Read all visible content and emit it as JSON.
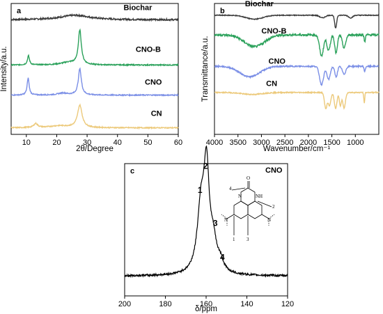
{
  "colors": {
    "Biochar": "#3a3a3a",
    "CNO-B": "#2aa15a",
    "CNO": "#7a8ee6",
    "CN": "#ecc97a",
    "ink": "#000000"
  },
  "chart_data": [
    {
      "id": "a",
      "type": "line",
      "panel_label": "a",
      "xlabel": "2θ/Degree",
      "ylabel": "Intensity/a.u.",
      "xlim": [
        5,
        60
      ],
      "ylim": [
        0,
        1
      ],
      "xticks": [
        10,
        20,
        30,
        40,
        50,
        60
      ],
      "yticks_shown": false,
      "series": [
        {
          "name": "Biochar",
          "offset": 0.875,
          "peaks": [
            {
              "x": 26,
              "h": 0.035,
              "w": 6
            }
          ],
          "noise": 0.006,
          "label_x": 42,
          "label_y": 0.95
        },
        {
          "name": "CNO-B",
          "offset": 0.53,
          "peaks": [
            {
              "x": 10.7,
              "h": 0.07,
              "w": 0.4
            },
            {
              "x": 27.6,
              "h": 0.26,
              "w": 0.6
            },
            {
              "x": 24,
              "h": 0.02,
              "w": 3
            }
          ],
          "noise": 0.004,
          "label_x": 46,
          "label_y": 0.63
        },
        {
          "name": "CNO",
          "offset": 0.3,
          "peaks": [
            {
              "x": 10.6,
              "h": 0.13,
              "w": 0.4
            },
            {
              "x": 27.6,
              "h": 0.2,
              "w": 0.6
            },
            {
              "x": 22,
              "h": 0.015,
              "w": 2
            }
          ],
          "noise": 0.004,
          "label_x": 49,
          "label_y": 0.38
        },
        {
          "name": "CN",
          "offset": 0.05,
          "peaks": [
            {
              "x": 13.1,
              "h": 0.03,
              "w": 0.8
            },
            {
              "x": 27.6,
              "h": 0.17,
              "w": 0.9
            },
            {
              "x": 21,
              "h": 0.015,
              "w": 4
            }
          ],
          "noise": 0.004,
          "label_x": 51,
          "label_y": 0.14
        }
      ]
    },
    {
      "id": "b",
      "type": "line",
      "panel_label": "b",
      "xlabel": "Wavenumber/cm⁻¹",
      "ylabel": "Transmittance/a.u.",
      "xlim": [
        4000,
        500
      ],
      "ylim": [
        0,
        1
      ],
      "xticks": [
        4000,
        3500,
        3000,
        2500,
        2000,
        1500,
        1000
      ],
      "yticks_shown": false,
      "series": [
        {
          "name": "Biochar",
          "offset": 0.91,
          "bands": [
            {
              "x": 3150,
              "d": 0.03,
              "w": 250
            },
            {
              "x": 1700,
              "d": 0.02,
              "w": 80
            },
            {
              "x": 1420,
              "d": 0.1,
              "w": 30
            },
            {
              "x": 1100,
              "d": 0.02,
              "w": 60
            }
          ],
          "noise": 0.003,
          "label_x": 3350,
          "label_y": 0.98
        },
        {
          "name": "CNO-B",
          "offset": 0.76,
          "bands": [
            {
              "x": 3150,
              "d": 0.09,
              "w": 300
            },
            {
              "x": 1720,
              "d": 0.16,
              "w": 60
            },
            {
              "x": 1570,
              "d": 0.12,
              "w": 50
            },
            {
              "x": 1410,
              "d": 0.14,
              "w": 40
            },
            {
              "x": 1240,
              "d": 0.1,
              "w": 50
            },
            {
              "x": 800,
              "d": 0.05,
              "w": 20
            }
          ],
          "noise": 0.008,
          "label_x": 3000,
          "label_y": 0.77
        },
        {
          "name": "CNO",
          "offset": 0.52,
          "bands": [
            {
              "x": 3250,
              "d": 0.08,
              "w": 300
            },
            {
              "x": 1720,
              "d": 0.14,
              "w": 60
            },
            {
              "x": 1570,
              "d": 0.1,
              "w": 50
            },
            {
              "x": 1410,
              "d": 0.08,
              "w": 40
            },
            {
              "x": 1240,
              "d": 0.06,
              "w": 50
            },
            {
              "x": 800,
              "d": 0.04,
              "w": 20
            }
          ],
          "noise": 0.005,
          "label_x": 2850,
          "label_y": 0.54
        },
        {
          "name": "CN",
          "offset": 0.32,
          "bands": [
            {
              "x": 3200,
              "d": 0.015,
              "w": 300
            },
            {
              "x": 1630,
              "d": 0.12,
              "w": 40
            },
            {
              "x": 1550,
              "d": 0.1,
              "w": 40
            },
            {
              "x": 1420,
              "d": 0.12,
              "w": 40
            },
            {
              "x": 1320,
              "d": 0.1,
              "w": 30
            },
            {
              "x": 1240,
              "d": 0.12,
              "w": 40
            },
            {
              "x": 810,
              "d": 0.08,
              "w": 15
            }
          ],
          "noise": 0.004,
          "label_x": 2900,
          "label_y": 0.37
        }
      ]
    },
    {
      "id": "c",
      "type": "line",
      "panel_label": "c",
      "title": "CNO",
      "xlabel": "δ/ppm",
      "ylabel": "",
      "xlim": [
        200,
        120
      ],
      "ylim": [
        0,
        1
      ],
      "xticks": [
        200,
        180,
        160,
        140,
        120
      ],
      "yticks_shown": false,
      "series": [
        {
          "name": "CNO",
          "peaks": [
            {
              "x": 159.8,
              "h": 0.73,
              "w": 1.6
            },
            {
              "x": 162.5,
              "h": 0.48,
              "w": 2.2
            },
            {
              "x": 156.5,
              "h": 0.2,
              "w": 2.0
            },
            {
              "x": 153.0,
              "h": 0.07,
              "w": 1.8
            }
          ],
          "baseline": 0.15,
          "noise": 0.008
        }
      ],
      "annotations": [
        {
          "text": "1",
          "x": 163.0,
          "y": 0.78
        },
        {
          "text": "2",
          "x": 160.3,
          "y": 0.96
        },
        {
          "text": "3",
          "x": 155.5,
          "y": 0.53
        },
        {
          "text": "4",
          "x": 152.0,
          "y": 0.27
        }
      ],
      "structure": {
        "atom_o": "O",
        "atom_n": "N",
        "atom_nh": "NH",
        "carbon_labels": [
          "4",
          "2",
          "1",
          "3"
        ]
      }
    }
  ]
}
